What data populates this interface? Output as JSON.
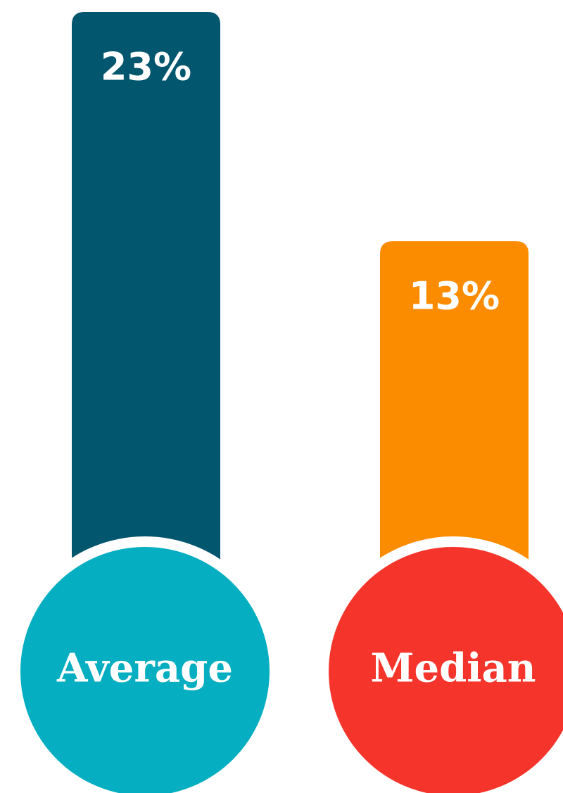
{
  "chart_data": {
    "type": "bar",
    "categories": [
      "Average",
      "Median"
    ],
    "values": [
      23,
      13
    ],
    "value_labels": [
      "23%",
      "13%"
    ],
    "colors": [
      "#02566e",
      "#fb8c00"
    ],
    "label_circle_colors": [
      "#05aec0",
      "#f5352c"
    ]
  }
}
